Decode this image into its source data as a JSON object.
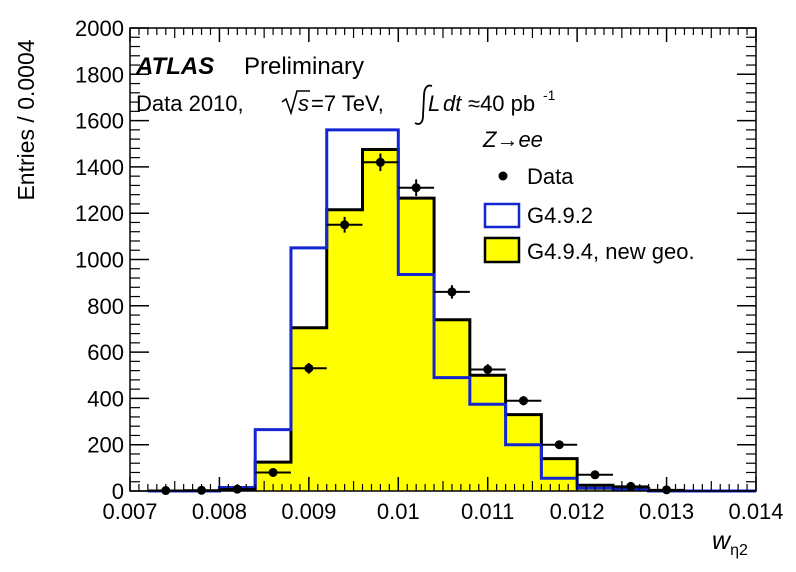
{
  "chart_data": {
    "type": "histogram",
    "ylabel": "Entries / 0.0004",
    "xlabel": "w",
    "xlabel_subscript": "η2",
    "xlim": [
      0.007,
      0.014
    ],
    "ylim": [
      0,
      2000
    ],
    "x_ticks": [
      "0.007",
      "0.008",
      "0.009",
      "0.01",
      "0.011",
      "0.012",
      "0.013",
      "0.014"
    ],
    "y_ticks": [
      "0",
      "200",
      "400",
      "600",
      "800",
      "1000",
      "1200",
      "1400",
      "1600",
      "1800",
      "2000"
    ],
    "bin_edges": [
      0.0072,
      0.0076,
      0.008,
      0.0084,
      0.0088,
      0.0092,
      0.0096,
      0.01,
      0.0104,
      0.0108,
      0.0112,
      0.0116,
      0.012,
      0.0124,
      0.0128,
      0.0132,
      0.0136,
      0.014
    ],
    "series": [
      {
        "name": "Data",
        "style": "points",
        "x": [
          0.0074,
          0.0078,
          0.0082,
          0.0086,
          0.009,
          0.0094,
          0.0098,
          0.0102,
          0.0106,
          0.011,
          0.0114,
          0.0118,
          0.0122,
          0.0126,
          0.013
        ],
        "values": [
          2,
          3,
          8,
          80,
          530,
          1150,
          1420,
          1310,
          860,
          525,
          390,
          200,
          70,
          20,
          5
        ],
        "errors": [
          1,
          2,
          3,
          9,
          23,
          34,
          38,
          36,
          29,
          23,
          20,
          14,
          8,
          4,
          2
        ]
      },
      {
        "name": "G4.9.2",
        "style": "step",
        "color": "#1426d4",
        "values": [
          0,
          0,
          15,
          265,
          1050,
          1560,
          1560,
          935,
          490,
          375,
          200,
          55,
          12,
          5,
          0,
          0,
          0
        ]
      },
      {
        "name": "G4.9.4, new geo.",
        "style": "filled-step",
        "color": "#000000",
        "fill": "#ffff00",
        "values": [
          0,
          0,
          5,
          125,
          705,
          1215,
          1475,
          1265,
          740,
          500,
          330,
          140,
          25,
          10,
          0,
          0,
          0
        ]
      }
    ],
    "annotations": {
      "atlas": "ATLAS",
      "preliminary": "Preliminary",
      "data_prefix": "Data 2010,",
      "sqrt_s": "s",
      "energy": "=7 TeV,",
      "lumi_L": "L",
      "lumi_dt": "dt",
      "lumi_value": "≈40 pb",
      "lumi_exp": "-1",
      "process": "Z→ee"
    },
    "legend_position": "top-right"
  }
}
